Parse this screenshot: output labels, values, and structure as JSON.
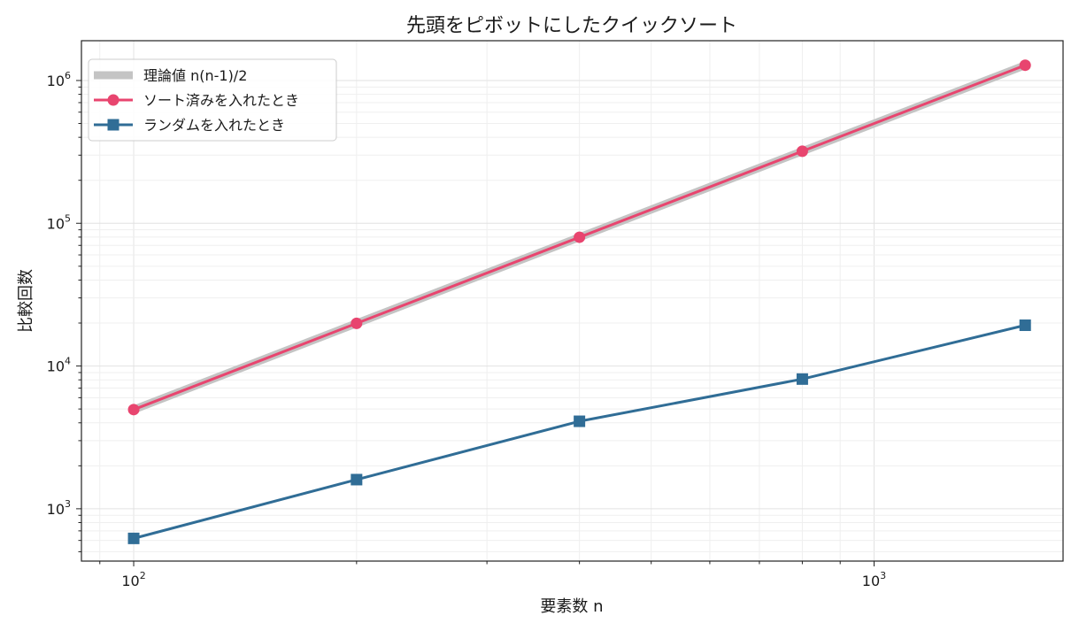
{
  "chart_data": {
    "type": "line",
    "title": "先頭をピボットにしたクイックソート",
    "xlabel": "要素数 n",
    "ylabel": "比較回数",
    "xscale": "log",
    "yscale": "log",
    "xlim": [
      85,
      1800
    ],
    "ylim": [
      430,
      1900000
    ],
    "x_ticks": [
      {
        "value": 100,
        "base": "10",
        "exp": "2"
      },
      {
        "value": 1000,
        "base": "10",
        "exp": "3"
      }
    ],
    "y_ticks": [
      {
        "value": 1000,
        "base": "10",
        "exp": "3"
      },
      {
        "value": 10000,
        "base": "10",
        "exp": "4"
      },
      {
        "value": 100000,
        "base": "10",
        "exp": "5"
      },
      {
        "value": 1000000,
        "base": "10",
        "exp": "6"
      }
    ],
    "grid": true,
    "legend_position": "top-left",
    "x": [
      100,
      200,
      400,
      800,
      1600
    ],
    "series": [
      {
        "name": "理論値 n(n-1)/2",
        "kind": "theory",
        "color": "#c4c4c4",
        "values": [
          4950,
          19900,
          79800,
          319600,
          1279200
        ]
      },
      {
        "name": "ソート済みを入れたとき",
        "kind": "sorted",
        "color": "#e8456f",
        "marker": "circle",
        "values": [
          4950,
          19900,
          79800,
          319600,
          1279200
        ]
      },
      {
        "name": "ランダムを入れたとき",
        "kind": "random",
        "color": "#306d96",
        "marker": "square",
        "values": [
          620,
          1600,
          4100,
          8100,
          19300
        ]
      }
    ]
  }
}
